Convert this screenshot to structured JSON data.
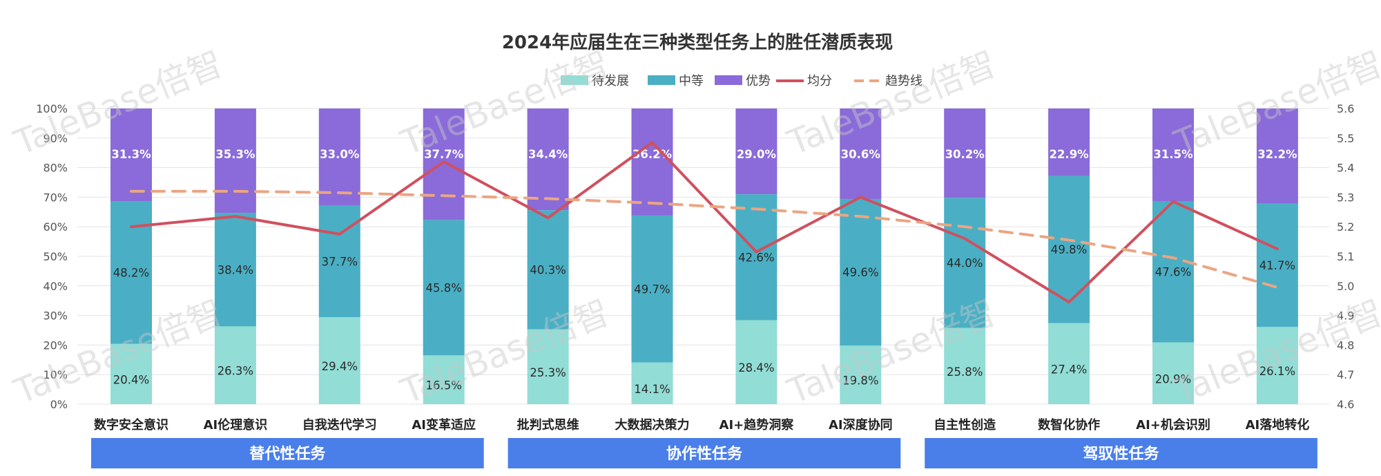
{
  "colors": {
    "developing": "#92DDD6",
    "medium": "#4AAFC4",
    "advantage": "#8A6BD9",
    "average": "#D0505F",
    "trend": "#EBA582",
    "group": "#4A7FEA"
  },
  "chart_data": {
    "type": "bar",
    "stacked": true,
    "title": "2024年应届生在三种类型任务上的胜任潜质表现",
    "legend": {
      "position": "top",
      "items": [
        "待发展",
        "中等",
        "优势",
        "均分",
        "趋势线"
      ]
    },
    "categories": [
      "数字安全意识",
      "AI伦理意识",
      "自我迭代学习",
      "AI变革适应",
      "批判式思维",
      "大数据决策力",
      "AI+趋势洞察",
      "AI深度协同",
      "自主性创造",
      "数智化协作",
      "AI+机会识别",
      "AI落地转化"
    ],
    "series": [
      {
        "name": "待发展",
        "values": [
          20.4,
          26.3,
          29.4,
          16.5,
          25.3,
          14.1,
          28.4,
          19.8,
          25.8,
          27.4,
          20.9,
          26.1
        ],
        "labels": [
          "20.4%",
          "26.3%",
          "29.4%",
          "16.5%",
          "25.3%",
          "14.1%",
          "28.4%",
          "19.8%",
          "25.8%",
          "27.4%",
          "20.9%",
          "26.1%"
        ]
      },
      {
        "name": "中等",
        "values": [
          48.2,
          38.4,
          37.7,
          45.8,
          40.3,
          49.7,
          42.6,
          49.6,
          44.0,
          49.8,
          47.6,
          41.7
        ],
        "labels": [
          "48.2%",
          "38.4%",
          "37.7%",
          "45.8%",
          "40.3%",
          "49.7%",
          "42.6%",
          "49.6%",
          "44.0%",
          "49.8%",
          "47.6%",
          "41.7%"
        ]
      },
      {
        "name": "优势",
        "values": [
          31.3,
          35.3,
          33.0,
          37.7,
          34.4,
          36.2,
          29.0,
          30.6,
          30.2,
          22.9,
          31.5,
          32.2
        ],
        "labels": [
          "31.3%",
          "35.3%",
          "33.0%",
          "37.7%",
          "34.4%",
          "36.2%",
          "29.0%",
          "30.6%",
          "30.2%",
          "22.9%",
          "31.5%",
          "32.2%"
        ]
      }
    ],
    "line_series": [
      {
        "name": "均分",
        "axis": "right",
        "values": [
          5.2,
          5.235,
          5.175,
          5.42,
          5.23,
          5.485,
          5.115,
          5.3,
          5.16,
          4.945,
          5.285,
          5.125
        ]
      },
      {
        "name": "趋势线",
        "axis": "right",
        "dashed": true,
        "values": [
          5.32,
          5.32,
          5.315,
          5.305,
          5.295,
          5.28,
          5.26,
          5.235,
          5.2,
          5.155,
          5.095,
          4.995
        ]
      }
    ],
    "y_left": {
      "min": 0,
      "max": 100,
      "ticks": [
        "0%",
        "10%",
        "20%",
        "30%",
        "40%",
        "50%",
        "60%",
        "70%",
        "80%",
        "90%",
        "100%"
      ]
    },
    "y_right": {
      "min": 4.6,
      "max": 5.6,
      "ticks": [
        "4.6",
        "4.7",
        "4.8",
        "4.9",
        "5.0",
        "5.1",
        "5.2",
        "5.3",
        "5.4",
        "5.5",
        "5.6"
      ]
    },
    "grid": true,
    "groups": [
      {
        "label": "替代性任务",
        "start": 0,
        "end": 3
      },
      {
        "label": "协作性任务",
        "start": 4,
        "end": 7
      },
      {
        "label": "驾驭性任务",
        "start": 8,
        "end": 11
      }
    ]
  },
  "watermark": "TaleBase倍智"
}
